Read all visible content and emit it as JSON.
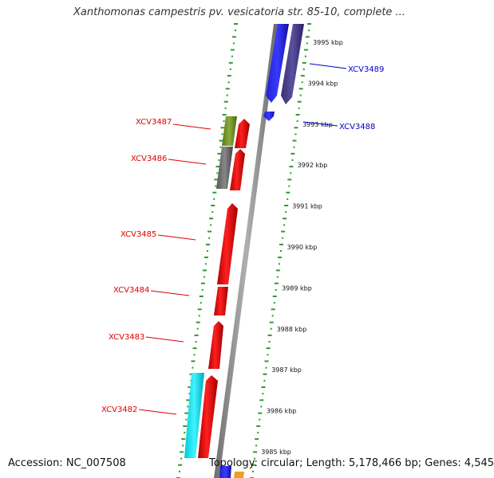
{
  "title": "Xanthomonas campestris pv. vesicatoria str. 85-10, complete ...",
  "footer": {
    "accession": "Accession: NC_007508",
    "stats": "Topology: circular; Length: 5,178,466 bp; Genes: 4,545"
  },
  "colors": {
    "backbone": "#8c8c8c",
    "tick": "#2e9a2e",
    "label_red": "#e00000",
    "label_blue": "#0000cc"
  },
  "scale_kbp": [
    "3995 kbp",
    "3994 kbp",
    "3993 kbp",
    "3992 kbp",
    "3991 kbp",
    "3990 kbp",
    "3989 kbp",
    "3988 kbp",
    "3987 kbp",
    "3986 kbp",
    "3985 kbp"
  ],
  "genes": [
    {
      "id": "XCV3489",
      "strand": "forward",
      "color": "#3030ff"
    },
    {
      "id": "XCV3488",
      "strand": "forward",
      "color": "#3030ff"
    },
    {
      "id": "XCV3487",
      "strand": "reverse",
      "color": "#7a9a2a"
    },
    {
      "id": "XCV3486",
      "strand": "reverse",
      "color": "#6e6e6e"
    },
    {
      "id": "XCV3485",
      "strand": "reverse",
      "color": "#ee1111"
    },
    {
      "id": "XCV3484",
      "strand": "reverse",
      "color": "#ee1111"
    },
    {
      "id": "XCV3483",
      "strand": "reverse",
      "color": "#ee1111"
    },
    {
      "id": "XCV3482",
      "strand": "reverse",
      "color": "#ee1111"
    }
  ]
}
